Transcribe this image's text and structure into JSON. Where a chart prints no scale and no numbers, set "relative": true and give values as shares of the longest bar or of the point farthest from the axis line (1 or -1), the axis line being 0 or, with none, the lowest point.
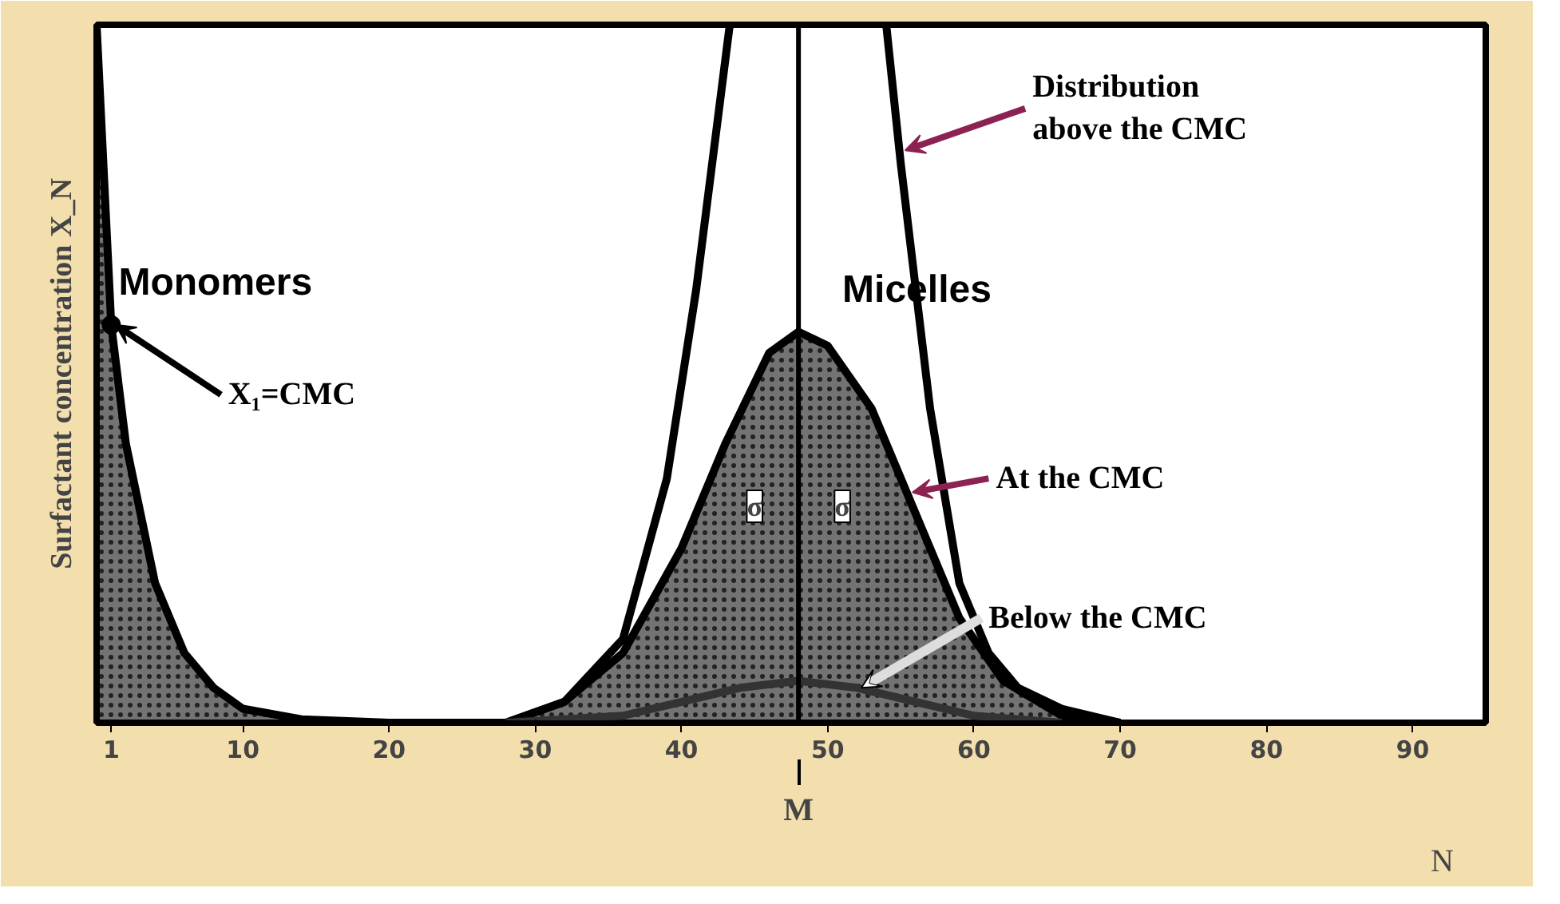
{
  "chart_data": {
    "type": "area",
    "relative": true,
    "ylabel": "Surfactant concentration X_N",
    "xlabel": "N",
    "xlim": [
      0,
      95
    ],
    "xticks": [
      1,
      10,
      20,
      30,
      40,
      50,
      60,
      70,
      80,
      90
    ],
    "grid": false,
    "series": [
      {
        "color": "#000000",
        "x": [
          0,
          1,
          2,
          4,
          6,
          8,
          10,
          14,
          20,
          30
        ],
        "values": [
          1,
          0.57,
          0.4,
          0.2,
          0.1,
          0.05,
          0.02,
          0.005,
          0,
          0
        ]
      },
      {
        "color": "#000000",
        "x": [
          28,
          32,
          36,
          40,
          43,
          46,
          48,
          50,
          53,
          56,
          59,
          62,
          66,
          70
        ],
        "values": [
          0,
          0.03,
          0.1,
          0.25,
          0.4,
          0.53,
          0.56,
          0.54,
          0.45,
          0.3,
          0.15,
          0.06,
          0.01,
          0
        ]
      },
      {
        "type": "line",
        "color": "#000000",
        "x": [
          28,
          32,
          36,
          39,
          41,
          43.3,
          48,
          54,
          55,
          57,
          59,
          61,
          63,
          66,
          70
        ],
        "values": [
          0,
          0.03,
          0.12,
          0.35,
          0.62,
          1,
          null,
          1,
          0.8,
          0.45,
          0.2,
          0.1,
          0.05,
          0.02,
          0
        ]
      },
      {
        "type": "line",
        "color": "#333333",
        "x": [
          28,
          36,
          40,
          44,
          48,
          52,
          56,
          60,
          66
        ],
        "values": [
          0,
          0.01,
          0.03,
          0.05,
          0.06,
          0.05,
          0.03,
          0.01,
          0
        ]
      }
    ],
    "ref_lines": [
      {
        "axis": "x",
        "value": 48,
        "label": "M",
        "color": "#000000"
      }
    ],
    "annotations": [
      {
        "text": "Monomers",
        "x": 1,
        "y": 0.57
      },
      {
        "text": "X₁=CMC",
        "x": 1,
        "y": 0.57
      },
      {
        "text": "Micelles",
        "x": 48,
        "y": 0.56
      },
      {
        "text": "Distribution\nabove the CMC",
        "x": 55,
        "y": 0.82
      },
      {
        "text": "At the CMC",
        "x": 55.5,
        "y": 0.33
      },
      {
        "text": "Below the CMC",
        "x": 52,
        "y": 0.05
      },
      {
        "text": "σ",
        "x": 45,
        "y": 0.31
      },
      {
        "text": "σ",
        "x": 51,
        "y": 0.31
      }
    ]
  }
}
